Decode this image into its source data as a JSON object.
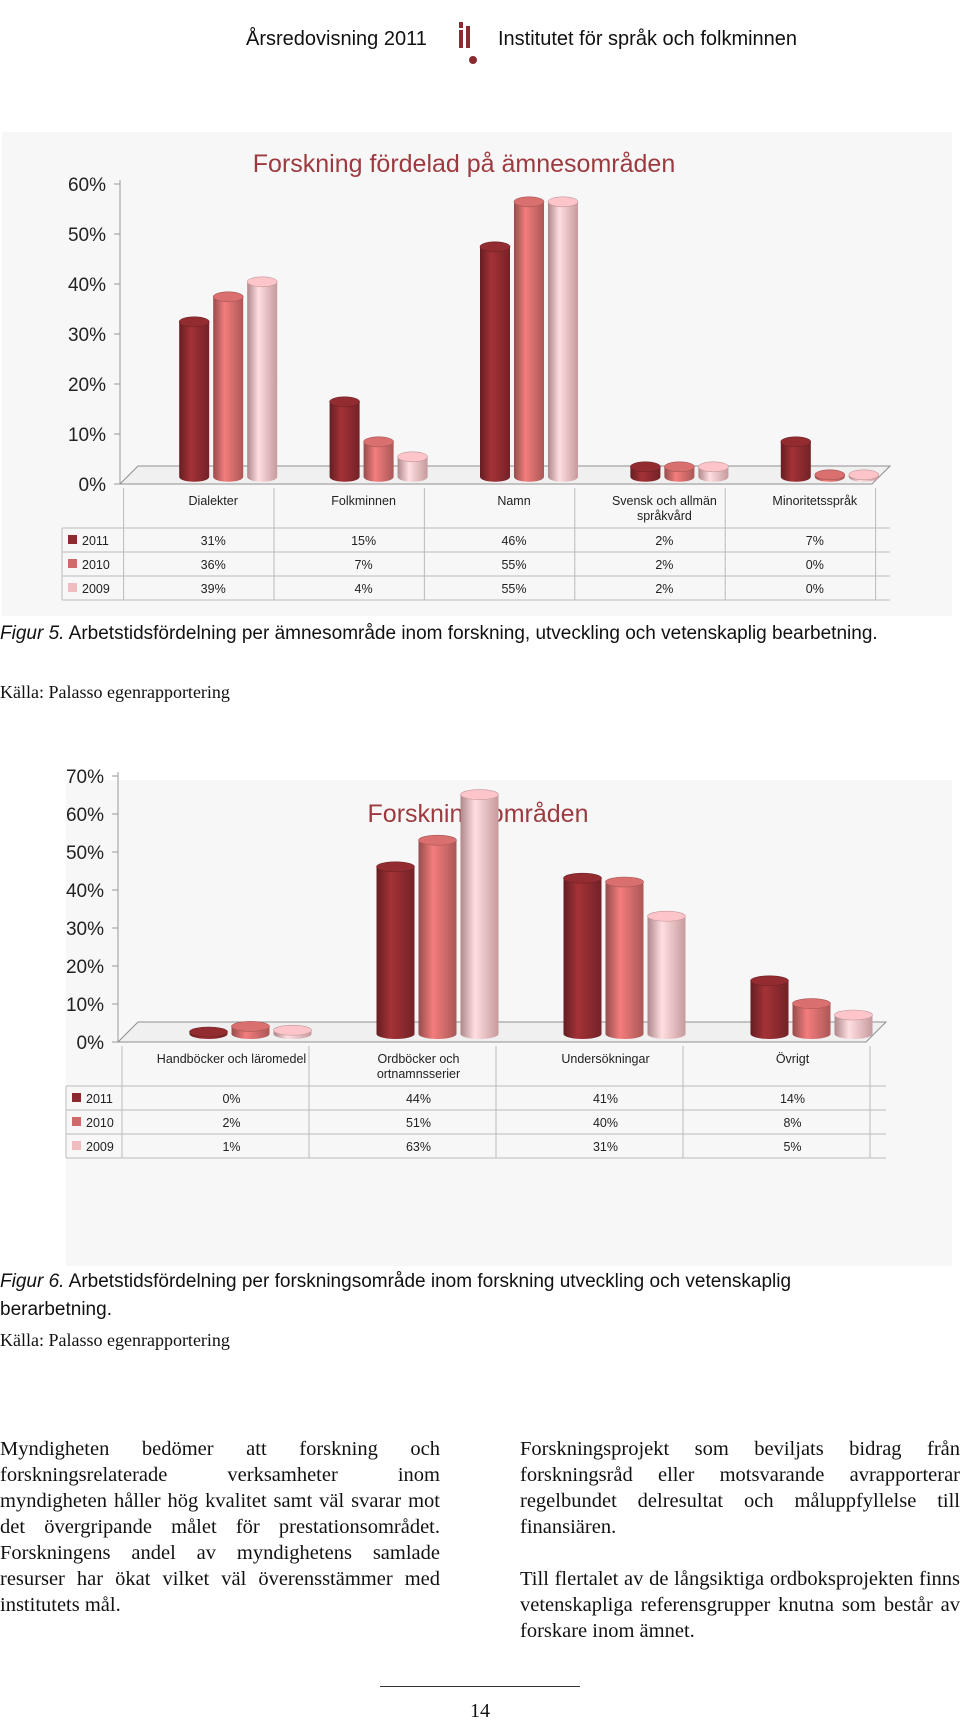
{
  "header": {
    "left": "Årsredovisning 2011",
    "right": "Institutet för språk och folkminnen",
    "logo_icon": "isof-logo-icon"
  },
  "colors": {
    "2011": "#8b2a2f",
    "2010": "#cf6a6a",
    "2009": "#f1bcbf",
    "title": "#9c3a3f"
  },
  "chart_data": [
    {
      "type": "bar",
      "title": "Forskning fördelad på ämnesområden",
      "categories": [
        "Dialekter",
        "Folkminnen",
        "Namn",
        "Svensk och allmän språkvård",
        "Minoritetsspråk"
      ],
      "series": [
        {
          "name": "2011",
          "values": [
            31,
            15,
            46,
            2,
            7
          ],
          "labels": [
            "31%",
            "15%",
            "46%",
            "2%",
            "7%"
          ]
        },
        {
          "name": "2010",
          "values": [
            36,
            7,
            55,
            2,
            0
          ],
          "labels": [
            "36%",
            "7%",
            "55%",
            "2%",
            "0%"
          ]
        },
        {
          "name": "2009",
          "values": [
            39,
            4,
            55,
            2,
            0
          ],
          "labels": [
            "39%",
            "4%",
            "55%",
            "2%",
            "0%"
          ]
        }
      ],
      "ylim": [
        0,
        60
      ],
      "yticks": [
        "0%",
        "10%",
        "20%",
        "30%",
        "40%",
        "50%",
        "60%"
      ],
      "data_table": true
    },
    {
      "type": "bar",
      "title": "Forskningsområden",
      "categories": [
        "Handböcker och läromedel",
        "Ordböcker och ortnamnsserier",
        "Undersökningar",
        "Övrigt"
      ],
      "series": [
        {
          "name": "2011",
          "values": [
            0,
            44,
            41,
            14
          ],
          "labels": [
            "0%",
            "44%",
            "41%",
            "14%"
          ]
        },
        {
          "name": "2010",
          "values": [
            2,
            51,
            40,
            8
          ],
          "labels": [
            "2%",
            "51%",
            "40%",
            "8%"
          ]
        },
        {
          "name": "2009",
          "values": [
            1,
            63,
            31,
            5
          ],
          "labels": [
            "1%",
            "63%",
            "31%",
            "5%"
          ]
        }
      ],
      "ylim": [
        0,
        70
      ],
      "yticks": [
        "0%",
        "10%",
        "20%",
        "30%",
        "40%",
        "50%",
        "60%",
        "70%"
      ],
      "data_table": true
    }
  ],
  "figure5": {
    "label": "Figur 5.",
    "text": " Arbetstidsfördelning per ämnesområde inom forskning, utveckling och vetenskaplig bearbetning.",
    "source": "Källa: Palasso egenrapportering"
  },
  "figure6": {
    "label": "Figur 6.",
    "text": " Arbetstidsfördelning per forskningsområde inom forskning utveckling och vetenskaplig berarbetning.",
    "source": "Källa: Palasso egenrapportering"
  },
  "body": {
    "left": "Myndigheten bedömer att forskning och forskningsrelaterade verksamheter inom myndigheten håller hög kvalitet samt väl svarar mot det övergripande målet för prestationsområdet. Forskningens andel av myndighetens samlade resurser har ökat vilket väl överensstämmer med institutets mål.",
    "right_p1": "Forskningsprojekt som beviljats bidrag från forskningsråd eller motsvarande avrapporterar regelbundet delresultat och måluppfyllelse till finansiären.",
    "right_p2": "Till flertalet av de långsiktiga ordboksprojekten finns vetenskapliga referensgrupper knutna som består av forskare inom ämnet."
  },
  "page_number": "14"
}
